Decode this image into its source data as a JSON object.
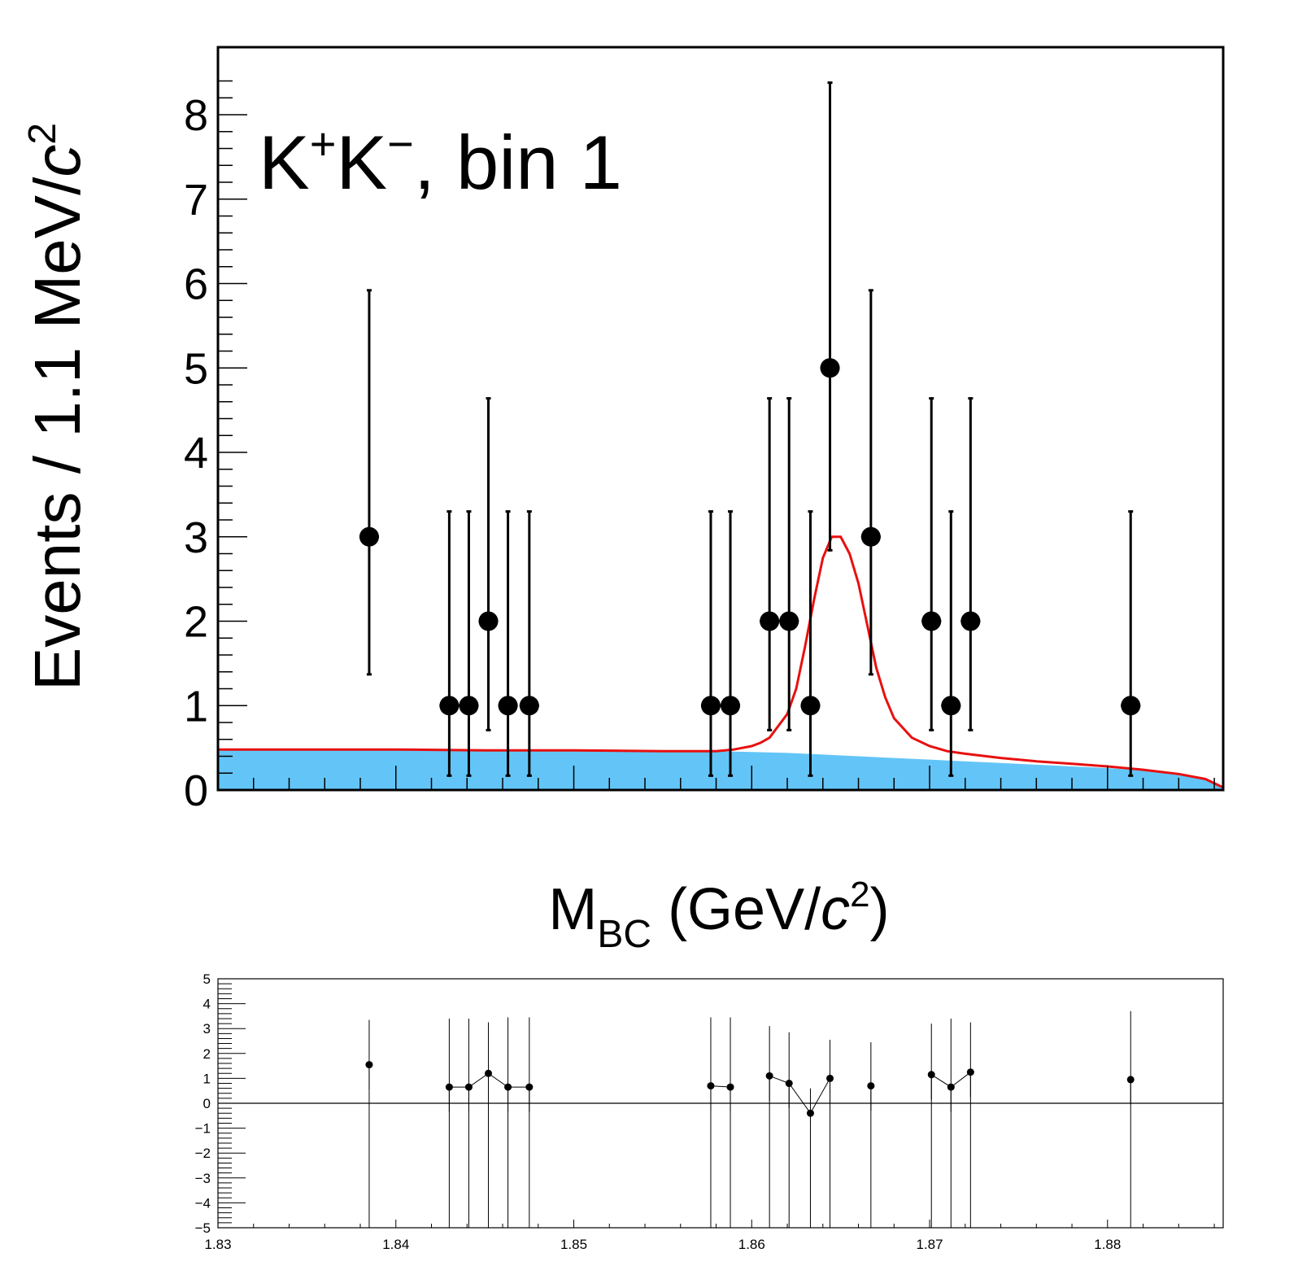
{
  "chart_data": [
    {
      "type": "scatter",
      "panel": "main",
      "title": "K+K−, bin 1",
      "title_parts": {
        "k1": "K",
        "sup1": "+",
        "k2": "K",
        "sup2": "−",
        "rest": ", bin 1"
      },
      "ylabel": "Events / 1.1 MeV/c2",
      "ylabel_parts": {
        "main": "Events / 1.1 MeV/",
        "c": "c",
        "sup": "2"
      },
      "xlabel": "MBC (GeV/c2)",
      "xlabel_parts": {
        "m": "M",
        "sub": "BC",
        "open": " (GeV/",
        "c": "c",
        "sup": "2",
        "close": ")"
      },
      "xlim": [
        1.83,
        1.8865
      ],
      "ylim": [
        0,
        8.8
      ],
      "yticks": [
        "0",
        "1",
        "2",
        "3",
        "4",
        "5",
        "6",
        "7",
        "8"
      ],
      "data_points": {
        "x": [
          1.8385,
          1.843,
          1.8441,
          1.8452,
          1.8463,
          1.8475,
          1.8577,
          1.8588,
          1.861,
          1.8621,
          1.8633,
          1.8644,
          1.8667,
          1.8701,
          1.8712,
          1.8723,
          1.8813
        ],
        "y": [
          3,
          1,
          1,
          2,
          1,
          1,
          1,
          1,
          2,
          2,
          1,
          5,
          3,
          2,
          1,
          2,
          1
        ],
        "err_low": [
          1.63,
          0.83,
          0.83,
          1.29,
          0.83,
          0.83,
          0.83,
          0.83,
          1.29,
          1.29,
          0.83,
          2.16,
          1.63,
          1.29,
          0.83,
          1.29,
          0.83
        ],
        "err_high": [
          2.92,
          2.3,
          2.3,
          2.64,
          2.3,
          2.3,
          2.3,
          2.3,
          2.64,
          2.64,
          2.3,
          3.38,
          2.92,
          2.64,
          2.3,
          2.64,
          2.3
        ]
      },
      "total_fit": {
        "color": "#e8100f",
        "x": [
          1.83,
          1.835,
          1.84,
          1.845,
          1.85,
          1.855,
          1.857,
          1.858,
          1.8585,
          1.859,
          1.86,
          1.8605,
          1.861,
          1.862,
          1.8625,
          1.863,
          1.8635,
          1.864,
          1.8645,
          1.865,
          1.8655,
          1.866,
          1.8665,
          1.867,
          1.8675,
          1.868,
          1.869,
          1.87,
          1.871,
          1.872,
          1.874,
          1.876,
          1.878,
          1.88,
          1.882,
          1.884,
          1.8855,
          1.8865
        ],
        "y": [
          0.48,
          0.48,
          0.48,
          0.47,
          0.47,
          0.46,
          0.46,
          0.46,
          0.47,
          0.48,
          0.52,
          0.56,
          0.62,
          0.9,
          1.2,
          1.7,
          2.25,
          2.75,
          3.0,
          3.0,
          2.8,
          2.45,
          1.95,
          1.45,
          1.1,
          0.85,
          0.62,
          0.52,
          0.46,
          0.43,
          0.38,
          0.34,
          0.31,
          0.28,
          0.24,
          0.19,
          0.13,
          0.03
        ]
      },
      "background": {
        "color": "#63c5f7",
        "x": [
          1.83,
          1.835,
          1.84,
          1.845,
          1.85,
          1.855,
          1.858,
          1.86,
          1.862,
          1.864,
          1.866,
          1.868,
          1.87,
          1.872,
          1.874,
          1.876,
          1.878,
          1.88,
          1.882,
          1.884,
          1.8855,
          1.8865
        ],
        "y": [
          0.48,
          0.48,
          0.48,
          0.47,
          0.47,
          0.46,
          0.46,
          0.45,
          0.44,
          0.42,
          0.4,
          0.38,
          0.36,
          0.34,
          0.32,
          0.3,
          0.28,
          0.26,
          0.23,
          0.19,
          0.13,
          0.03
        ]
      }
    },
    {
      "type": "scatter",
      "panel": "pull",
      "xlim": [
        1.83,
        1.8865
      ],
      "ylim": [
        -5,
        5
      ],
      "xticks": [
        "1.83",
        "1.84",
        "1.85",
        "1.86",
        "1.87",
        "1.88"
      ],
      "yticks": [
        "−5",
        "−4",
        "−3",
        "−2",
        "−1",
        "0",
        "1",
        "2",
        "3",
        "4",
        "5"
      ],
      "data_points": {
        "x": [
          1.8385,
          1.843,
          1.8441,
          1.8452,
          1.8463,
          1.8475,
          1.8577,
          1.8588,
          1.861,
          1.8621,
          1.8633,
          1.8644,
          1.8667,
          1.8701,
          1.8712,
          1.8723,
          1.8813
        ],
        "y": [
          1.55,
          0.65,
          0.65,
          1.2,
          0.65,
          0.65,
          0.7,
          0.65,
          1.1,
          0.8,
          -0.4,
          1.0,
          0.7,
          1.15,
          0.65,
          1.25,
          0.95
        ],
        "err_low": [
          1.0,
          1.0,
          1.0,
          1.0,
          1.0,
          1.0,
          1.0,
          1.0,
          1.0,
          1.0,
          0.35,
          1.0,
          1.0,
          1.0,
          1.0,
          1.0,
          1.0
        ],
        "err_high": [
          1.8,
          2.75,
          2.75,
          2.05,
          2.8,
          2.8,
          2.75,
          2.8,
          2.0,
          2.05,
          1.0,
          1.55,
          1.75,
          2.05,
          2.75,
          2.0,
          2.75
        ]
      },
      "connected_x_ranges": [
        [
          1.843,
          1.8475
        ],
        [
          1.8577,
          1.8588
        ],
        [
          1.861,
          1.8644
        ],
        [
          1.8701,
          1.8723
        ]
      ]
    }
  ]
}
